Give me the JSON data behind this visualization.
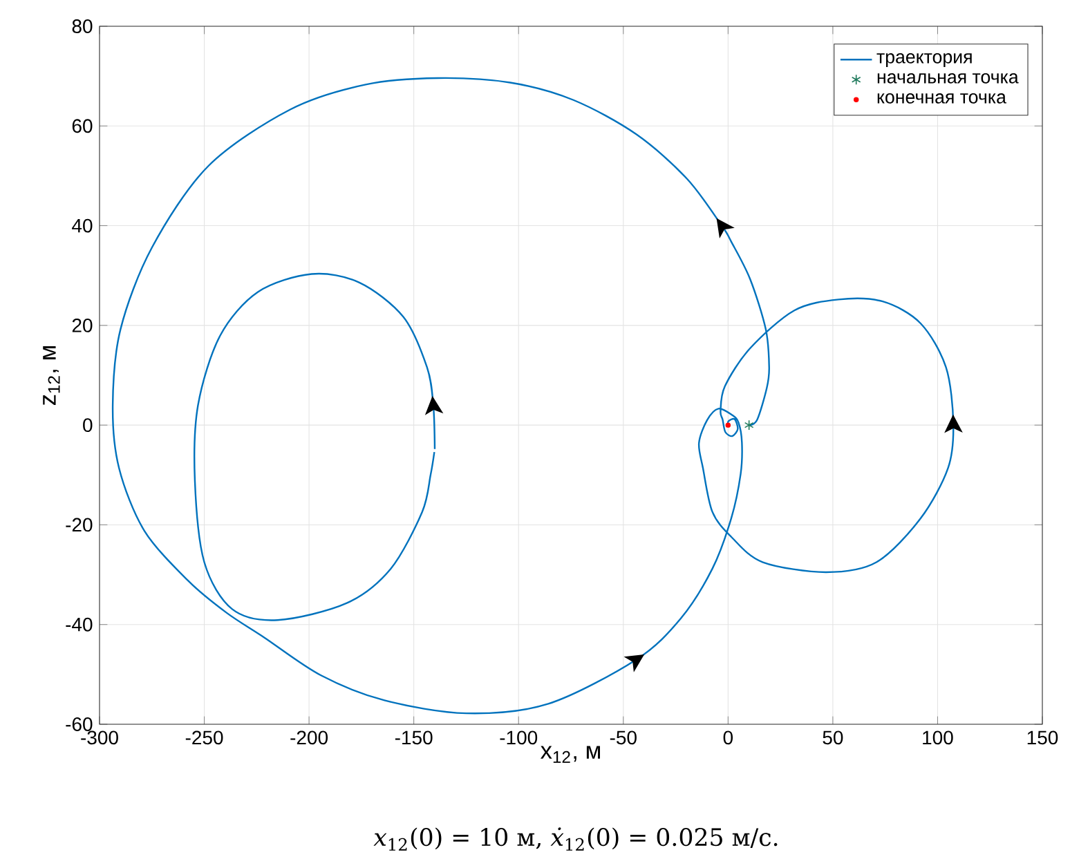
{
  "chart_data": {
    "type": "line",
    "xlabel": "x$_{12}$,  м",
    "ylabel": "z$_{12}$,  м",
    "xlim": [
      -300,
      150
    ],
    "xticks": [
      -300,
      -250,
      -200,
      -150,
      -100,
      -50,
      0,
      50,
      100,
      150
    ],
    "ylim": [
      -60,
      80
    ],
    "yticks": [
      -60,
      -40,
      -20,
      0,
      20,
      40,
      60,
      80
    ],
    "grid": true,
    "legend": "top right",
    "annotations": [
      "*x*$_{12}$(0) = 10 м, *ẋ*$_{12}$(0) = 0.025 м/с."
    ],
    "series": [
      {
        "name": "траектория",
        "marker": "none",
        "color": "#0072bd",
        "x": [
          10,
          13.9,
          18.5,
          19.6,
          18,
          10.5,
          1.5,
          -3,
          -19.6,
          -43.7,
          -73.8,
          -104,
          -138.6,
          -173,
          -209,
          -248,
          -275,
          -290,
          -293.7,
          -290.7,
          -278.6,
          -257.5,
          -239.5,
          -221.4,
          -194.3,
          -164,
          -125,
          -85.8,
          -43.7,
          -22.6,
          -7.5,
          1.5,
          6,
          6.6,
          5,
          2,
          -4.6,
          -10,
          -13.9,
          -12,
          -7.5,
          1.5,
          16.6,
          46.7,
          70.8,
          91.9,
          105,
          107.5,
          104,
          91.9,
          73.8,
          52.7,
          31.6,
          10.5,
          -1.5,
          -3.6,
          -2.6,
          -1.3,
          2,
          4.6,
          3.1,
          0.2,
          0
        ],
        "values": [
          0,
          1.1,
          7.5,
          11.6,
          19.2,
          29.3,
          36.8,
          40,
          49.4,
          58.3,
          65.2,
          68.7,
          69.6,
          68.3,
          63.3,
          52,
          35.6,
          19.2,
          4,
          -8.6,
          -21.2,
          -31.3,
          -37.6,
          -42.6,
          -50.2,
          -55.2,
          -57.8,
          -55.9,
          -47,
          -38.8,
          -28.8,
          -18.7,
          -9.8,
          -3.5,
          0.5,
          2,
          3.3,
          1,
          -3.6,
          -8.6,
          -17.4,
          -22.4,
          -27.5,
          -29.5,
          -27.5,
          -18.7,
          -8.6,
          0.3,
          11.6,
          20.4,
          24.8,
          25.2,
          23,
          15.4,
          7.8,
          2.8,
          1.1,
          -1.4,
          -2.2,
          -0.8,
          1.2,
          0.8,
          0
        ]
      },
      {
        "name": "начальная точка",
        "type": "scatter",
        "marker": "cross",
        "color": "#1f7a5c",
        "x": [
          10
        ],
        "values": [
          0
        ]
      },
      {
        "name": "конечная точка",
        "type": "scatter",
        "marker": "circle",
        "color": "#ff0000",
        "x": [
          0
        ],
        "values": [
          0
        ]
      },
      {
        "marker": "none",
        "color": "#0072bd",
        "x": [
          -140,
          -140.7,
          -143.7,
          -155,
          -176,
          -198.8,
          -224.4,
          -242.5,
          -253,
          -254.5,
          -250,
          -236.7,
          -215,
          -182,
          -161,
          -146,
          -142,
          -140.2
        ],
        "values": [
          -4.8,
          4,
          11.6,
          21.7,
          28.6,
          30.3,
          26.7,
          17.9,
          4,
          -11.1,
          -27.5,
          -36.9,
          -39.1,
          -35.7,
          -28.8,
          -17.4,
          -10,
          -5.4
        ]
      }
    ]
  }
}
